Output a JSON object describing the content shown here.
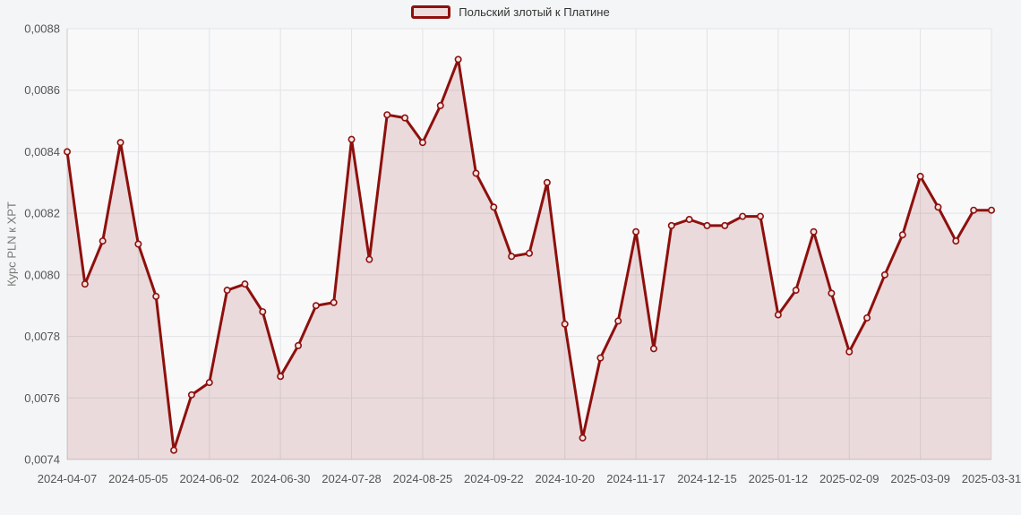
{
  "legend": {
    "label": "Польский злотый к Платине"
  },
  "y_axis": {
    "title": "Курс PLN к XPT",
    "tick_labels": [
      "0,0074",
      "0,0076",
      "0,0078",
      "0,0080",
      "0,0082",
      "0,0084",
      "0,0086",
      "0,0088"
    ]
  },
  "x_axis": {
    "tick_labels": [
      "2024-04-07",
      "2024-05-05",
      "2024-06-02",
      "2024-06-30",
      "2024-07-28",
      "2024-08-25",
      "2024-09-22",
      "2024-10-20",
      "2024-11-17",
      "2024-12-15",
      "2025-01-12",
      "2025-02-09",
      "2025-03-09",
      "2025-03-31"
    ],
    "tick_indices": [
      0,
      4,
      8,
      12,
      16,
      20,
      24,
      28,
      32,
      36,
      40,
      44,
      48,
      52
    ]
  },
  "chart_data": {
    "type": "area",
    "title": "",
    "xlabel": "",
    "ylabel": "Курс PLN к XPT",
    "ylim": [
      0.0074,
      0.0088
    ],
    "grid": true,
    "legend_position": "top",
    "x": [
      "2024-04-07",
      "2024-04-14",
      "2024-04-21",
      "2024-04-28",
      "2024-05-05",
      "2024-05-12",
      "2024-05-19",
      "2024-05-26",
      "2024-06-02",
      "2024-06-09",
      "2024-06-16",
      "2024-06-23",
      "2024-06-30",
      "2024-07-07",
      "2024-07-14",
      "2024-07-21",
      "2024-07-28",
      "2024-08-04",
      "2024-08-11",
      "2024-08-18",
      "2024-08-25",
      "2024-09-01",
      "2024-09-08",
      "2024-09-15",
      "2024-09-22",
      "2024-09-29",
      "2024-10-06",
      "2024-10-13",
      "2024-10-20",
      "2024-10-27",
      "2024-11-03",
      "2024-11-10",
      "2024-11-17",
      "2024-11-24",
      "2024-12-01",
      "2024-12-08",
      "2024-12-15",
      "2024-12-22",
      "2024-12-29",
      "2025-01-05",
      "2025-01-12",
      "2025-01-19",
      "2025-01-26",
      "2025-02-02",
      "2025-02-09",
      "2025-02-16",
      "2025-02-23",
      "2025-03-02",
      "2025-03-09",
      "2025-03-16",
      "2025-03-23",
      "2025-03-30",
      "2025-03-31"
    ],
    "series": [
      {
        "name": "Польский злотый к Платине",
        "values": [
          0.0084,
          0.00797,
          0.00811,
          0.00843,
          0.0081,
          0.00793,
          0.00743,
          0.00761,
          0.00765,
          0.00795,
          0.00797,
          0.00788,
          0.00767,
          0.00777,
          0.0079,
          0.00791,
          0.00844,
          0.00805,
          0.00852,
          0.00851,
          0.00843,
          0.00855,
          0.0087,
          0.00833,
          0.00822,
          0.00806,
          0.00807,
          0.0083,
          0.00784,
          0.00747,
          0.00773,
          0.00785,
          0.00814,
          0.00776,
          0.00816,
          0.00818,
          0.00816,
          0.00816,
          0.00819,
          0.00819,
          0.00787,
          0.00795,
          0.00814,
          0.00794,
          0.00775,
          0.00786,
          0.008,
          0.00813,
          0.00832,
          0.00822,
          0.00811,
          0.00821,
          0.00821
        ]
      }
    ]
  },
  "colors": {
    "line": "#8d100d",
    "area_fill": "rgba(141, 16, 13, 0.13)",
    "marker_fill": "#f3e6e6",
    "grid": "#e2e3e6",
    "axis": "#cccccc",
    "tick_text": "#555555",
    "axis_title": "#777777",
    "legend_text": "#333333",
    "legend_swatch_fill": "#eedddd",
    "background": "#f4f5f6",
    "plot_background": "#f9f9fa"
  }
}
